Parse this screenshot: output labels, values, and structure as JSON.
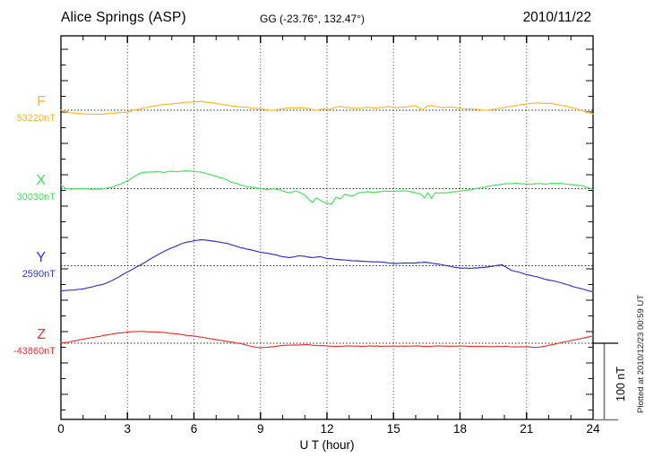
{
  "header": {
    "station": "Alice Springs (ASP)",
    "coords": "GG (-23.76°, 132.47°)",
    "date": "2010/11/22"
  },
  "xaxis": {
    "label": "U T (hour)",
    "ticks": [
      "0",
      "3",
      "6",
      "9",
      "12",
      "15",
      "18",
      "21",
      "24"
    ]
  },
  "scale_bar": {
    "label": "100 nT",
    "nT": 100
  },
  "footer_note": "Plotted at 2010/12/23 00:59 UT",
  "colors": {
    "frame": "#000000",
    "grid": "#3a3a3a",
    "baseline": "#222222",
    "tick_long": "#858585",
    "tick_short": "#111111",
    "scale_bar_gray": "#7a7a7a"
  },
  "chart_data": {
    "type": "line",
    "x_unit": "hour",
    "x_range": [
      0,
      24
    ],
    "x_ticks": [
      0,
      3,
      6,
      9,
      12,
      15,
      18,
      21,
      24
    ],
    "xlabel": "U T (hour)",
    "grid": "dotted vertical every 3 h, dotted horizontal baseline per channel",
    "y_scale_reference_nT": 100,
    "offset_units": "nT relative to series base_nT",
    "series": [
      {
        "name": "F",
        "base_label": "53220nT",
        "base_nT": 53220,
        "color": "#FFB628",
        "points": [
          [
            0,
            0
          ],
          [
            0.4,
            -3.5
          ],
          [
            1,
            -4.7
          ],
          [
            1.5,
            -5.3
          ],
          [
            2,
            -4.7
          ],
          [
            2.5,
            -3.5
          ],
          [
            3,
            -2.4
          ],
          [
            3.5,
            1.2
          ],
          [
            4,
            4.7
          ],
          [
            4.5,
            7.1
          ],
          [
            5,
            8.2
          ],
          [
            5.5,
            10
          ],
          [
            6,
            10.6
          ],
          [
            6.3,
            11.8
          ],
          [
            6.8,
            10
          ],
          [
            7.3,
            7.1
          ],
          [
            7.8,
            5.3
          ],
          [
            8.3,
            4.1
          ],
          [
            8.8,
            2.4
          ],
          [
            9.3,
            0.6
          ],
          [
            9.6,
            0
          ],
          [
            10.1,
            2.4
          ],
          [
            10.8,
            3.5
          ],
          [
            11.2,
            1.8
          ],
          [
            11.5,
            0
          ],
          [
            11.8,
            1.8
          ],
          [
            12.1,
            1.2
          ],
          [
            12.5,
            4.7
          ],
          [
            13,
            3.5
          ],
          [
            13.4,
            2.4
          ],
          [
            13.8,
            4.1
          ],
          [
            14.2,
            2.9
          ],
          [
            14.7,
            4.7
          ],
          [
            15.1,
            3.5
          ],
          [
            15.5,
            4.1
          ],
          [
            16,
            5.9
          ],
          [
            16.3,
            0
          ],
          [
            16.5,
            5.3
          ],
          [
            16.8,
            5.9
          ],
          [
            17.2,
            3.5
          ],
          [
            17.6,
            4.1
          ],
          [
            18,
            2.4
          ],
          [
            18.4,
            1.8
          ],
          [
            18.8,
            1.2
          ],
          [
            19.1,
            0
          ],
          [
            19.5,
            1.2
          ],
          [
            20,
            3.5
          ],
          [
            20.7,
            7.1
          ],
          [
            21.4,
            9.4
          ],
          [
            21.8,
            9.4
          ],
          [
            22.2,
            8.2
          ],
          [
            22.7,
            5.9
          ],
          [
            23.2,
            2.4
          ],
          [
            23.5,
            -0.6
          ],
          [
            23.8,
            -2.9
          ],
          [
            24,
            -4.7
          ]
        ]
      },
      {
        "name": "X",
        "base_label": "30030nT",
        "base_nT": 30030,
        "color": "#44E05C",
        "points": [
          [
            0,
            4.7
          ],
          [
            0.2,
            0
          ],
          [
            0.5,
            -0.6
          ],
          [
            1,
            0
          ],
          [
            1.5,
            -0.6
          ],
          [
            2,
            0
          ],
          [
            2.3,
            1.8
          ],
          [
            2.6,
            5.3
          ],
          [
            3,
            10
          ],
          [
            3.3,
            15.9
          ],
          [
            3.6,
            20.6
          ],
          [
            4,
            21.8
          ],
          [
            4.3,
            22.4
          ],
          [
            4.6,
            21.2
          ],
          [
            5,
            22.9
          ],
          [
            5.3,
            22.4
          ],
          [
            5.6,
            23.5
          ],
          [
            6,
            22.9
          ],
          [
            6.3,
            21.8
          ],
          [
            6.6,
            19.4
          ],
          [
            7,
            16.5
          ],
          [
            7.4,
            12.4
          ],
          [
            7.8,
            7.6
          ],
          [
            8.2,
            4.1
          ],
          [
            8.6,
            1.8
          ],
          [
            9,
            0
          ],
          [
            9.3,
            -1.8
          ],
          [
            9.6,
            0
          ],
          [
            10,
            -2.9
          ],
          [
            10.3,
            -5.3
          ],
          [
            10.6,
            -2.9
          ],
          [
            11,
            -8.8
          ],
          [
            11.2,
            -14.7
          ],
          [
            11.35,
            -18.2
          ],
          [
            11.5,
            -12.4
          ],
          [
            11.7,
            -15.3
          ],
          [
            12,
            -19.4
          ],
          [
            12.2,
            -20.6
          ],
          [
            12.4,
            -11.2
          ],
          [
            12.6,
            -13.5
          ],
          [
            12.8,
            -7.6
          ],
          [
            13.1,
            -10
          ],
          [
            13.4,
            -5.9
          ],
          [
            13.8,
            -4.1
          ],
          [
            14.2,
            -4.7
          ],
          [
            14.6,
            -2.9
          ],
          [
            15,
            -3.5
          ],
          [
            15.4,
            -2.9
          ],
          [
            15.8,
            -4.1
          ],
          [
            16.2,
            -6.5
          ],
          [
            16.4,
            -12.4
          ],
          [
            16.55,
            -5.3
          ],
          [
            16.7,
            -12.9
          ],
          [
            16.9,
            -5.3
          ],
          [
            17.3,
            -5.9
          ],
          [
            17.7,
            -4.1
          ],
          [
            18.1,
            -2.9
          ],
          [
            18.5,
            -1.8
          ],
          [
            19,
            1.8
          ],
          [
            19.4,
            3.5
          ],
          [
            19.8,
            5.3
          ],
          [
            20.2,
            6.5
          ],
          [
            20.6,
            7.1
          ],
          [
            21,
            5.9
          ],
          [
            21.4,
            6.5
          ],
          [
            21.8,
            5.9
          ],
          [
            22.2,
            7.1
          ],
          [
            22.6,
            6.5
          ],
          [
            23,
            5.3
          ],
          [
            23.4,
            4.1
          ],
          [
            23.7,
            1.8
          ],
          [
            24,
            -1.2
          ]
        ]
      },
      {
        "name": "Y",
        "base_label": "2590nT",
        "base_nT": 2590,
        "color": "#3030CF",
        "points": [
          [
            0,
            -33
          ],
          [
            0.5,
            -32
          ],
          [
            1,
            -30.6
          ],
          [
            1.5,
            -27.1
          ],
          [
            2,
            -23.5
          ],
          [
            2.5,
            -16.5
          ],
          [
            3,
            -8.2
          ],
          [
            3.3,
            -3.5
          ],
          [
            3.6,
            1.2
          ],
          [
            4,
            8.2
          ],
          [
            4.5,
            16.5
          ],
          [
            5,
            23.5
          ],
          [
            5.5,
            29.4
          ],
          [
            6,
            32.9
          ],
          [
            6.3,
            34.1
          ],
          [
            6.7,
            32.9
          ],
          [
            7,
            31.8
          ],
          [
            7.5,
            29.4
          ],
          [
            8,
            24.7
          ],
          [
            8.5,
            21.2
          ],
          [
            9,
            17.6
          ],
          [
            9.5,
            15.3
          ],
          [
            10,
            11.8
          ],
          [
            10.3,
            10.6
          ],
          [
            10.7,
            12.9
          ],
          [
            11,
            12.4
          ],
          [
            11.3,
            10.6
          ],
          [
            11.7,
            11.8
          ],
          [
            12,
            9.4
          ],
          [
            12.5,
            8.2
          ],
          [
            13,
            7.1
          ],
          [
            13.5,
            5.9
          ],
          [
            14,
            5.3
          ],
          [
            14.5,
            4.7
          ],
          [
            15,
            2.9
          ],
          [
            15.5,
            3.5
          ],
          [
            16,
            3.5
          ],
          [
            16.4,
            4.7
          ],
          [
            16.8,
            2.9
          ],
          [
            17.2,
            1.2
          ],
          [
            17.6,
            -1.2
          ],
          [
            18,
            -2.9
          ],
          [
            18.4,
            -3.5
          ],
          [
            18.8,
            -2.9
          ],
          [
            19.2,
            -1.8
          ],
          [
            19.6,
            0
          ],
          [
            19.9,
            1.2
          ],
          [
            20.3,
            -5.9
          ],
          [
            20.7,
            -8.8
          ],
          [
            21,
            -11.8
          ],
          [
            21.4,
            -14.1
          ],
          [
            21.7,
            -16.5
          ],
          [
            22,
            -18.8
          ],
          [
            22.4,
            -21.2
          ],
          [
            22.8,
            -24.7
          ],
          [
            23.2,
            -28.2
          ],
          [
            23.6,
            -31.2
          ],
          [
            24,
            -34.1
          ]
        ]
      },
      {
        "name": "Z",
        "base_label": "-43860nT",
        "base_nT": -43860,
        "color": "#EE3333",
        "points": [
          [
            0,
            0.6
          ],
          [
            0.3,
            1.2
          ],
          [
            0.7,
            3.5
          ],
          [
            1,
            5.3
          ],
          [
            1.5,
            7.6
          ],
          [
            2,
            10.6
          ],
          [
            2.5,
            12.9
          ],
          [
            3,
            14.7
          ],
          [
            3.4,
            15.3
          ],
          [
            3.8,
            15.3
          ],
          [
            4.2,
            14.7
          ],
          [
            4.6,
            14.1
          ],
          [
            5,
            12.9
          ],
          [
            5.5,
            11.2
          ],
          [
            6,
            9.4
          ],
          [
            6.5,
            7.1
          ],
          [
            7,
            4.7
          ],
          [
            7.5,
            2.4
          ],
          [
            8,
            0
          ],
          [
            8.5,
            -3.5
          ],
          [
            9,
            -5.9
          ],
          [
            9.5,
            -4.7
          ],
          [
            10,
            -2.9
          ],
          [
            10.5,
            -2.4
          ],
          [
            11,
            -1.8
          ],
          [
            11.5,
            -2.9
          ],
          [
            12,
            -3.5
          ],
          [
            12.5,
            -4.1
          ],
          [
            13,
            -3.5
          ],
          [
            13.5,
            -4.1
          ],
          [
            14,
            -3.5
          ],
          [
            14.5,
            -4.1
          ],
          [
            15,
            -3.5
          ],
          [
            15.5,
            -4.1
          ],
          [
            16,
            -3.5
          ],
          [
            16.5,
            -4.1
          ],
          [
            17,
            -3.5
          ],
          [
            17.5,
            -4.1
          ],
          [
            18,
            -3.5
          ],
          [
            18.5,
            -4.1
          ],
          [
            19,
            -4.1
          ],
          [
            19.5,
            -4.7
          ],
          [
            20,
            -4.1
          ],
          [
            20.5,
            -4.7
          ],
          [
            21,
            -4.7
          ],
          [
            21.5,
            -5.3
          ],
          [
            21.8,
            -4.1
          ],
          [
            22.2,
            -1.8
          ],
          [
            22.6,
            1.2
          ],
          [
            23,
            3.5
          ],
          [
            23.4,
            5.9
          ],
          [
            23.7,
            7.6
          ],
          [
            24,
            9.4
          ]
        ]
      }
    ]
  }
}
